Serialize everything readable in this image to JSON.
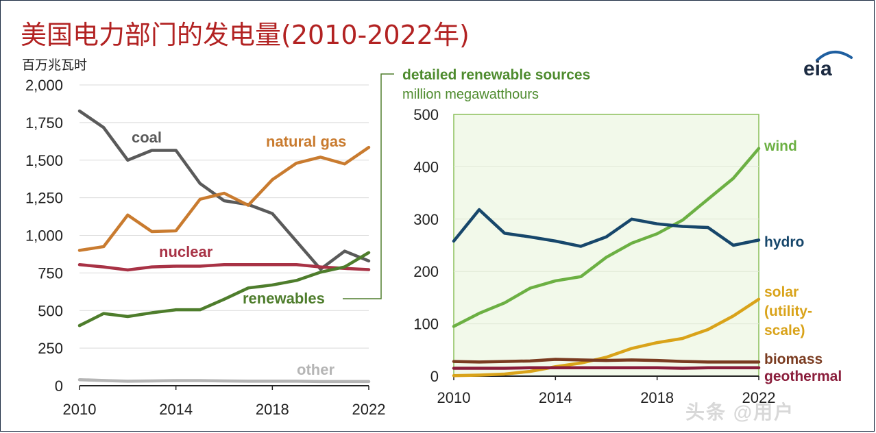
{
  "title": "美国电力部门的发电量(2010-2022年)",
  "subtitle": "百万兆瓦时",
  "logo_text": "eia",
  "colors": {
    "coal": "#5a5a5a",
    "natural_gas": "#c97b2f",
    "nuclear": "#a83245",
    "renewables": "#4e7d2c",
    "other": "#b5b5b5",
    "wind": "#6cb043",
    "hydro": "#17476b",
    "solar": "#d9a31a",
    "biomass": "#7a3b20",
    "geothermal": "#8a1d3b",
    "title": "#b22222",
    "inset_bg": "#f2f9ea",
    "inset_border": "#8bbf5a",
    "inset_title": "#4e8b2e"
  },
  "chart_data": [
    {
      "type": "line",
      "title": "美国电力部门的发电量(2010-2022年)",
      "ylabel": "百万兆瓦时",
      "xlim": [
        2010,
        2022
      ],
      "ylim": [
        0,
        2000
      ],
      "x_ticks": [
        "2010",
        "2014",
        "2018",
        "2022"
      ],
      "y_ticks": [
        "0",
        "250",
        "500",
        "750",
        "1,000",
        "1,250",
        "1,500",
        "1,750",
        "2,000"
      ],
      "x": [
        2010,
        2011,
        2012,
        2013,
        2014,
        2015,
        2016,
        2017,
        2018,
        2019,
        2020,
        2021,
        2022
      ],
      "series": [
        {
          "name": "coal",
          "key": "coal",
          "values": [
            1827,
            1717,
            1500,
            1565,
            1565,
            1345,
            1230,
            1205,
            1145,
            960,
            775,
            895,
            830
          ]
        },
        {
          "name": "natural gas",
          "key": "natural_gas",
          "values": [
            900,
            925,
            1135,
            1025,
            1030,
            1240,
            1280,
            1200,
            1370,
            1480,
            1520,
            1475,
            1585
          ]
        },
        {
          "name": "nuclear",
          "key": "nuclear",
          "values": [
            805,
            790,
            770,
            790,
            795,
            795,
            805,
            805,
            805,
            805,
            790,
            780,
            772
          ]
        },
        {
          "name": "renewables",
          "key": "renewables",
          "values": [
            400,
            480,
            460,
            485,
            505,
            505,
            575,
            650,
            670,
            700,
            755,
            790,
            885
          ]
        },
        {
          "name": "other",
          "key": "other",
          "values": [
            40,
            35,
            30,
            32,
            34,
            34,
            32,
            30,
            30,
            30,
            28,
            28,
            28
          ]
        }
      ]
    },
    {
      "type": "line",
      "title": "detailed renewable sources",
      "ylabel": "million megawatthours",
      "xlim": [
        2010,
        2022
      ],
      "ylim": [
        0,
        500
      ],
      "x_ticks": [
        "2010",
        "2014",
        "2018",
        "2022"
      ],
      "y_ticks": [
        "0",
        "100",
        "200",
        "300",
        "400",
        "500"
      ],
      "x": [
        2010,
        2011,
        2012,
        2013,
        2014,
        2015,
        2016,
        2017,
        2018,
        2019,
        2020,
        2021,
        2022
      ],
      "series": [
        {
          "name": "wind",
          "key": "wind",
          "values": [
            95,
            120,
            140,
            168,
            182,
            190,
            227,
            254,
            272,
            298,
            338,
            378,
            435
          ]
        },
        {
          "name": "hydro",
          "key": "hydro",
          "values": [
            258,
            318,
            273,
            266,
            258,
            248,
            266,
            300,
            291,
            286,
            284,
            250,
            260
          ]
        },
        {
          "name": "solar (utility-scale)",
          "key": "solar",
          "values": [
            1,
            2,
            4,
            9,
            18,
            25,
            36,
            53,
            64,
            72,
            89,
            115,
            147
          ]
        },
        {
          "name": "biomass",
          "key": "biomass",
          "values": [
            28,
            27,
            28,
            29,
            32,
            31,
            30,
            31,
            30,
            28,
            27,
            27,
            27
          ]
        },
        {
          "name": "geothermal",
          "key": "geothermal",
          "values": [
            15,
            15,
            15,
            16,
            16,
            16,
            16,
            16,
            16,
            15,
            16,
            16,
            16
          ]
        }
      ],
      "label_lines": [
        {
          "key": "solar",
          "lines": [
            "solar",
            "(utility-",
            "scale)"
          ]
        }
      ]
    }
  ],
  "inset_heading": {
    "line1": "detailed renewable sources",
    "line2": "million megawatthours"
  },
  "watermark": "头条 @用户"
}
